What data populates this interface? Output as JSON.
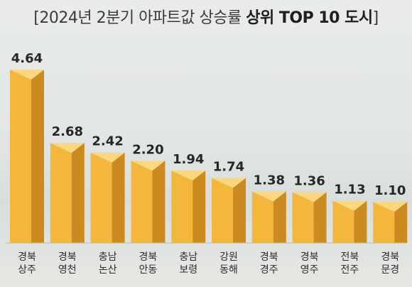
{
  "title": {
    "open_bracket": "[",
    "main": "2024년 2분기 아파트값 상승률 ",
    "highlight": "상위 TOP 10 도시",
    "close_bracket": "]"
  },
  "colors": {
    "bar_front": "#f2b73c",
    "bar_side": "#cc8b21",
    "bar_top": "#fcd77c",
    "value_text": "#262626",
    "label_text": "#2e2e2e",
    "baseline": "#b9b9b9"
  },
  "chart_data": {
    "type": "bar",
    "title": "[2024년 2분기 아파트값 상승률 상위 TOP 10 도시]",
    "categories": [
      [
        "경북",
        "상주"
      ],
      [
        "경북",
        "영천"
      ],
      [
        "충남",
        "논산"
      ],
      [
        "경북",
        "안동"
      ],
      [
        "충남",
        "보령"
      ],
      [
        "강원",
        "동해"
      ],
      [
        "경북",
        "경주"
      ],
      [
        "경북",
        "영주"
      ],
      [
        "전북",
        "전주"
      ],
      [
        "경북",
        "문경"
      ]
    ],
    "values": [
      4.64,
      2.68,
      2.42,
      2.2,
      1.94,
      1.74,
      1.38,
      1.36,
      1.13,
      1.1
    ],
    "value_labels": [
      "4.64",
      "2.68",
      "2.42",
      "2.20",
      "1.94",
      "1.74",
      "1.38",
      "1.36",
      "1.13",
      "1.10"
    ],
    "xlabel": "",
    "ylabel": "",
    "ylim": [
      0,
      4.64
    ],
    "grid": false,
    "legend": "none"
  }
}
